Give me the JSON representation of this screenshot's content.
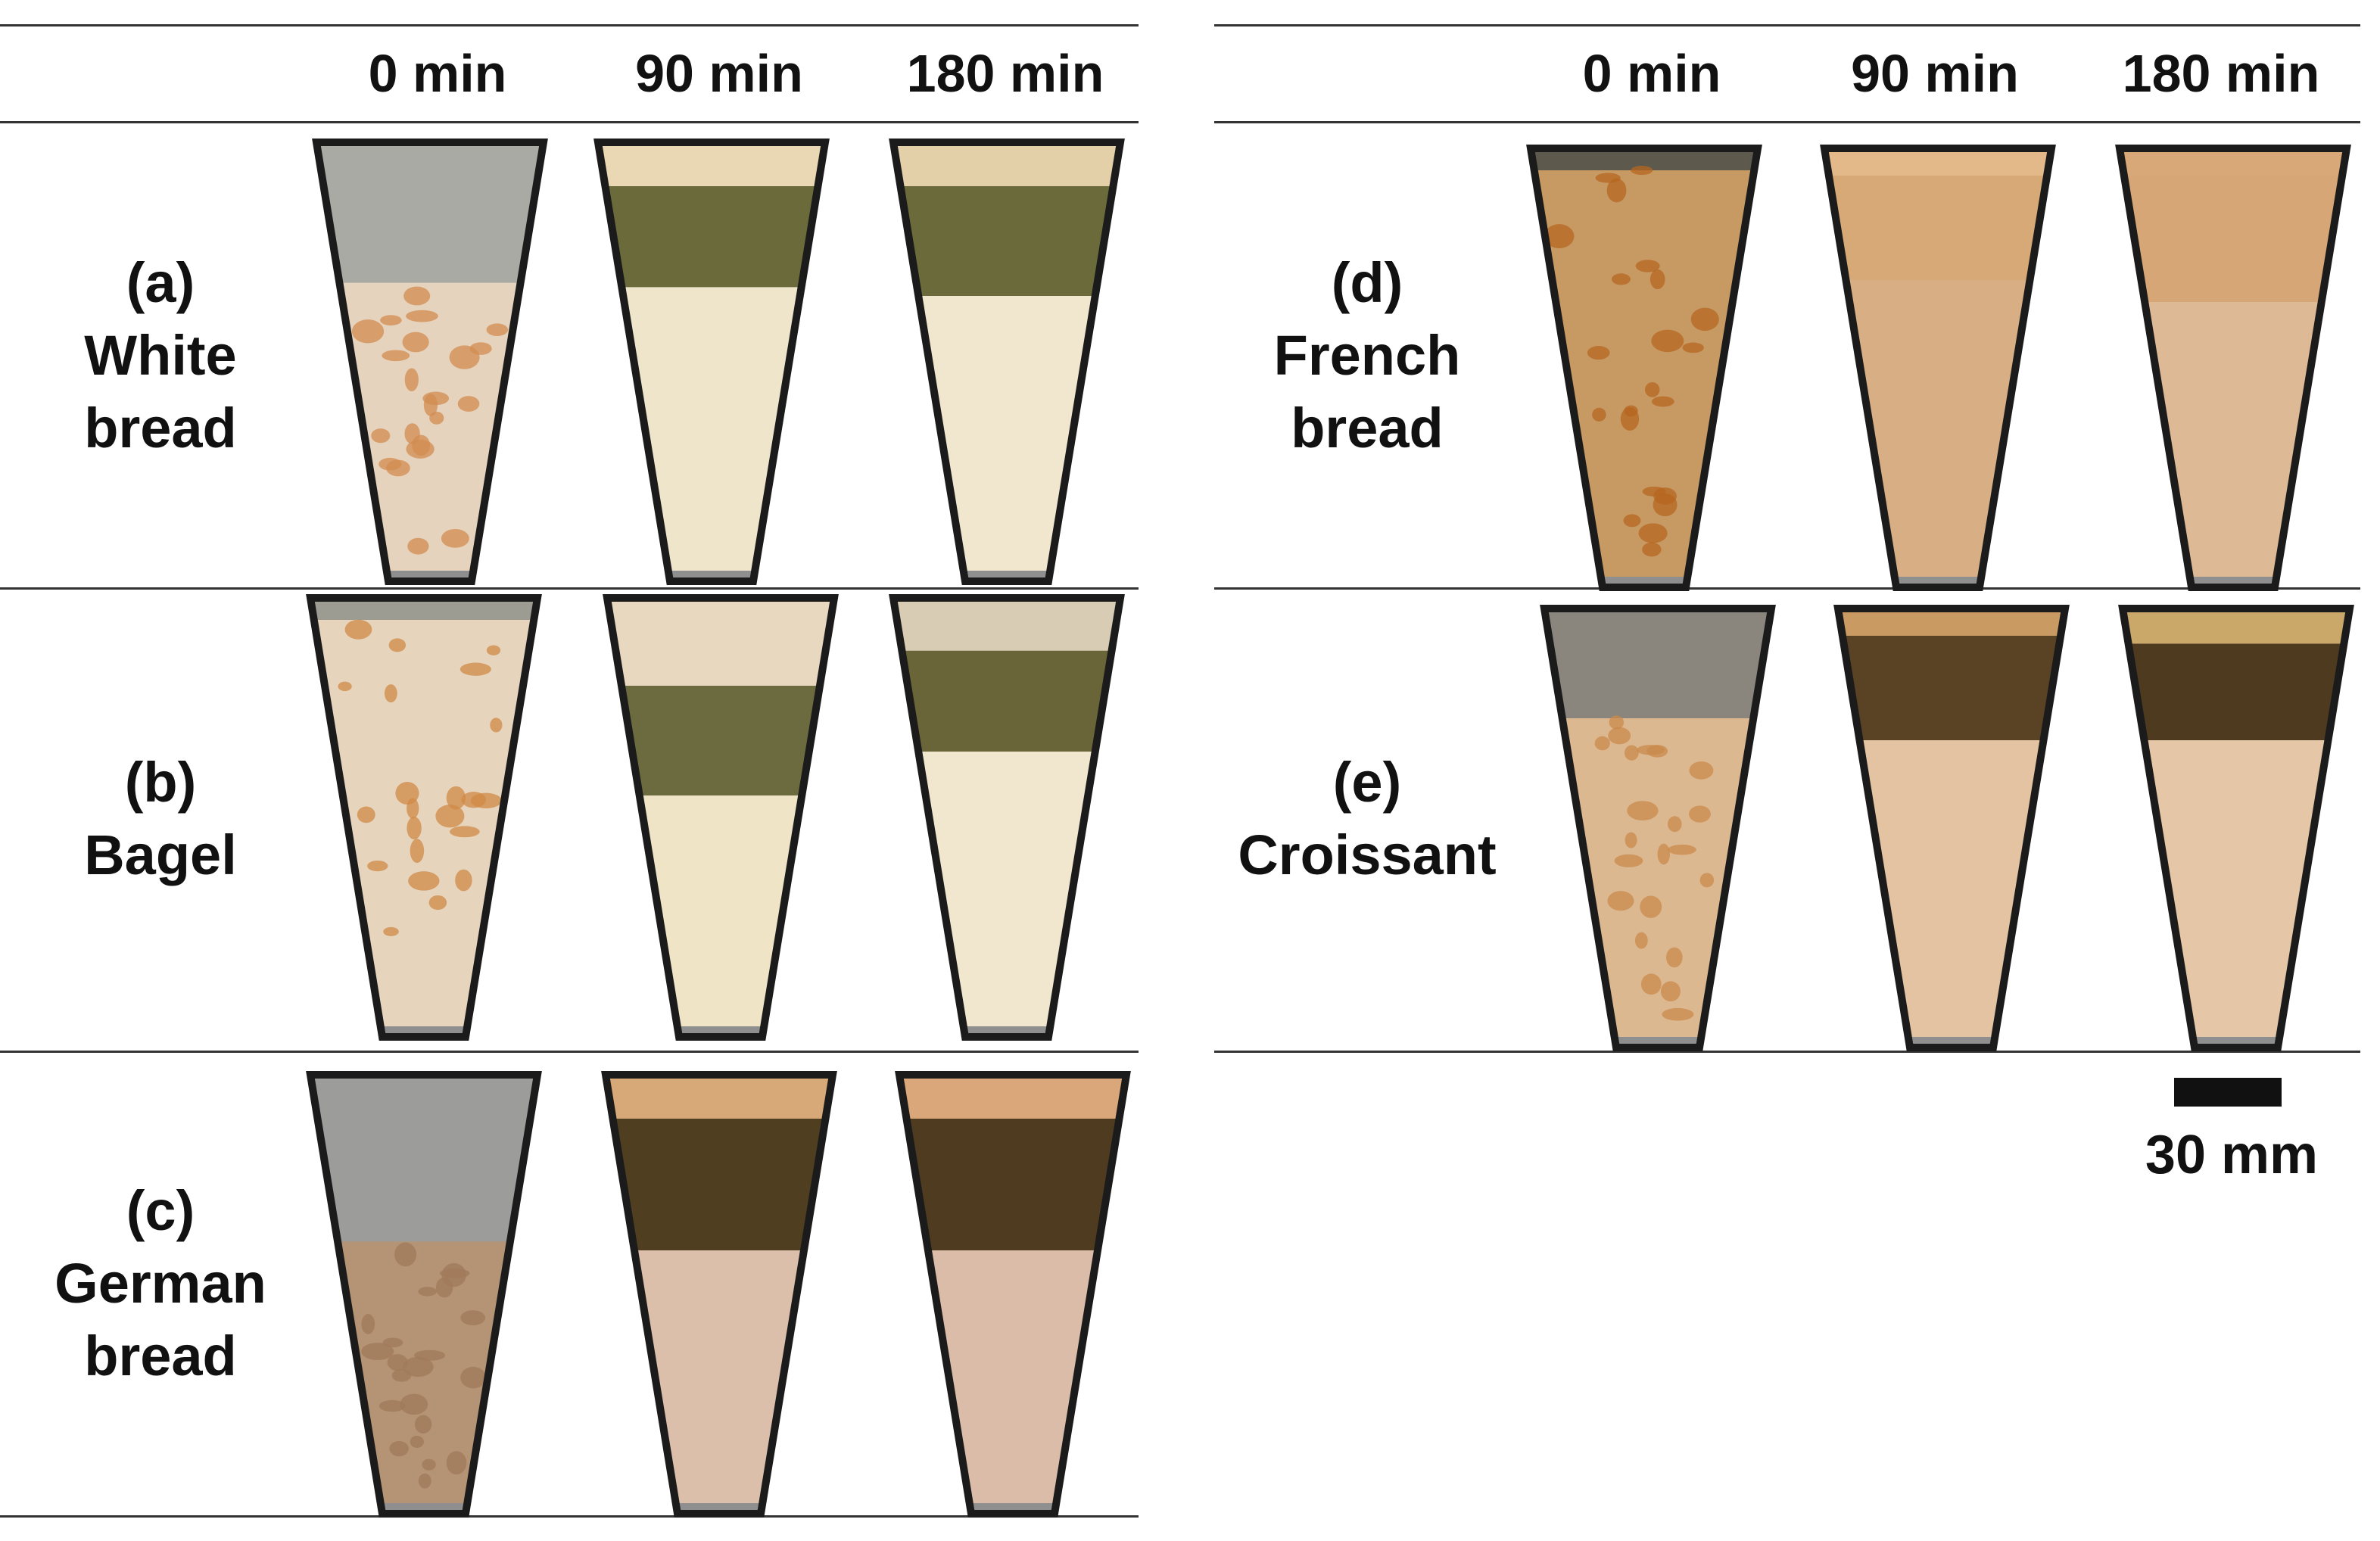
{
  "panels": {
    "left": {
      "headers": [
        "0 min",
        "90 min",
        "180 min"
      ],
      "rows": [
        {
          "letter": "(a)",
          "name_lines": [
            "White",
            "bread"
          ]
        },
        {
          "letter": "(b)",
          "name_lines": [
            "Bagel"
          ]
        },
        {
          "letter": "(c)",
          "name_lines": [
            "German",
            "bread"
          ]
        }
      ]
    },
    "right": {
      "headers": [
        "0 min",
        "90 min",
        "180 min"
      ],
      "rows": [
        {
          "letter": "(d)",
          "name_lines": [
            "French",
            "bread"
          ]
        },
        {
          "letter": "(e)",
          "name_lines": [
            "Croissant"
          ]
        }
      ]
    }
  },
  "scale_bar": {
    "label": "30 mm"
  },
  "samples": {
    "a": {
      "t0": {
        "liquid": "#a9aaa4",
        "solid": "#e6d3bd",
        "solid_from": 0.32,
        "pieces": "#d28c50"
      },
      "t90": {
        "top": "#ead7b3",
        "band": "#6b6a3a",
        "solid": "#efe5cb",
        "solid_from": 0.33,
        "band_from": 0.1
      },
      "t180": {
        "top": "#e3cfa8",
        "band": "#6b6a3a",
        "solid": "#f1e7cf",
        "solid_from": 0.35,
        "band_from": 0.1
      }
    },
    "b": {
      "t0": {
        "liquid": "#9d9c92",
        "solid": "#e6d4bd",
        "solid_from": 0.05,
        "pieces": "#cf8a45"
      },
      "t90": {
        "top": "#e8d8c0",
        "band": "#6c6b3f",
        "solid": "#efe4c6",
        "solid_from": 0.45,
        "band_from": 0.2
      },
      "t180": {
        "top": "#d8ccb4",
        "band": "#6a6439",
        "solid": "#f1e7cf",
        "solid_from": 0.35,
        "band_from": 0.12
      }
    },
    "c": {
      "t0": {
        "liquid": "#9c9d9b",
        "solid": "#b59476",
        "solid_from": 0.38,
        "pieces": "#a07a5a"
      },
      "t90": {
        "top": "#d7a878",
        "band": "#4f3e20",
        "solid": "#dcbfab",
        "solid_from": 0.4,
        "band_from": 0.1
      },
      "t180": {
        "top": "#d9a77a",
        "band": "#4f3c20",
        "solid": "#dbbca8",
        "solid_from": 0.4,
        "band_from": 0.1
      }
    },
    "d": {
      "t0": {
        "liquid": "#5d5a4d",
        "solid": "#c79a64",
        "solid_from": 0.05,
        "pieces": "#b5661f"
      },
      "t90": {
        "top": "#e3b98a",
        "band": "#d6a977",
        "solid": "#d8ae85",
        "solid_from": 0.3,
        "band_from": 0.0
      },
      "t180": {
        "top": "#d9a878",
        "band": "#d6a677",
        "solid": "#deb995",
        "solid_from": 0.35,
        "band_from": 0.0
      }
    },
    "e": {
      "t0": {
        "liquid": "#8a857d",
        "solid": "#dcb891",
        "solid_from": 0.25,
        "pieces": "#c98a4b"
      },
      "t90": {
        "top": "#c99b63",
        "band": "#5a4224",
        "solid": "#e4c3a2",
        "solid_from": 0.3,
        "band_from": 0.05
      },
      "t180": {
        "top": "#c9a86a",
        "band": "#4d3a1f",
        "solid": "#e5c6a6",
        "solid_from": 0.3,
        "band_from": 0.08
      }
    }
  }
}
